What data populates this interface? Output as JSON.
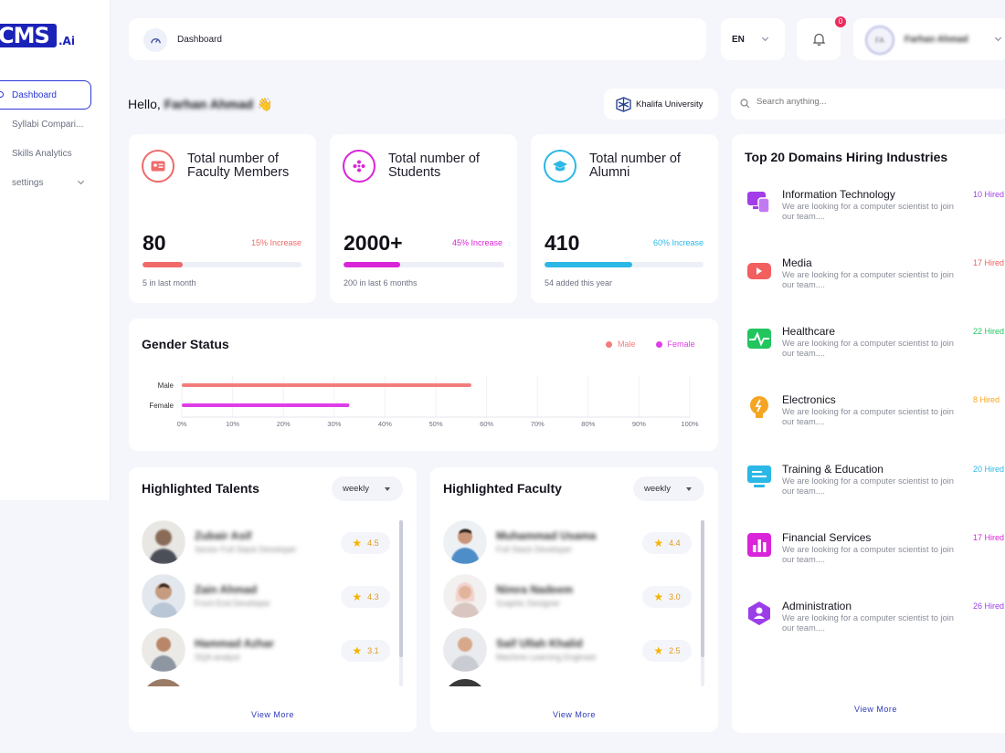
{
  "brand": {
    "logo_text": "CMS",
    "logo_suffix": ".Ai"
  },
  "sidebar": {
    "items": [
      {
        "label": "Dashboard"
      },
      {
        "label": "Syllabi Compari..."
      },
      {
        "label": "Skills Analytics"
      },
      {
        "label": "settings"
      }
    ]
  },
  "header": {
    "page": "Dashboard",
    "language": "EN",
    "notification_count": "0",
    "user_initials": "FA",
    "user_name": "Farhan Ahmad"
  },
  "greeting": {
    "hello": "Hello,",
    "name": "Farhan Ahmad",
    "emoji": "👋"
  },
  "university": "Khalifa University",
  "search": {
    "placeholder": "Search anything..."
  },
  "stats": [
    {
      "title": "Total number of Faculty Members",
      "value": "80",
      "change": "15% Increase",
      "progress": 0.25,
      "sub": "5 in last month",
      "color": "#f06a6a"
    },
    {
      "title": "Total number of Students",
      "value": "2000+",
      "change": "45% Increase",
      "progress": 0.35,
      "sub": "200 in last 6 months",
      "color": "#d924d9"
    },
    {
      "title": "Total number of Alumni",
      "value": "410",
      "change": "60% Increase",
      "progress": 0.55,
      "sub": "54 added this year",
      "color": "#2bb8e6"
    }
  ],
  "gender": {
    "title": "Gender Status",
    "legend": [
      {
        "label": "Male",
        "color": "#f47c7c"
      },
      {
        "label": "Female",
        "color": "#de3ee8"
      }
    ]
  },
  "chart_data": {
    "type": "bar",
    "orientation": "horizontal",
    "title": "Gender Status",
    "categories": [
      "Male",
      "Female"
    ],
    "values": [
      57,
      33
    ],
    "xlim": [
      0,
      100
    ],
    "xticks": [
      "0%",
      "10%",
      "20%",
      "30%",
      "40%",
      "50%",
      "60%",
      "70%",
      "80%",
      "90%",
      "100%"
    ],
    "legend": [
      "Male",
      "Female"
    ],
    "legend_position": "top-right",
    "colors": [
      "#f47c7c",
      "#de3ee8"
    ]
  },
  "talents": {
    "title": "Highlighted Talents",
    "filter": "weekly",
    "items": [
      {
        "name": "Zubair Asif",
        "role": "Senior Full Stack Developer",
        "rating": "4.5"
      },
      {
        "name": "Zain Ahmad",
        "role": "Front End Developer",
        "rating": "4.3"
      },
      {
        "name": "Hammad Azhar",
        "role": "SQA analyst",
        "rating": "3.1"
      }
    ],
    "view_more": "View More"
  },
  "faculty": {
    "title": "Highlighted Faculty",
    "filter": "weekly",
    "items": [
      {
        "name": "Muhammad Usama",
        "role": "Full Stack Developer",
        "rating": "4.4"
      },
      {
        "name": "Nimra Nadeem",
        "role": "Graphic Designer",
        "rating": "3.0"
      },
      {
        "name": "Saif Ullah Khalid",
        "role": "Machine Learning Engineer",
        "rating": "2.5"
      }
    ],
    "view_more": "View More"
  },
  "domains": {
    "title": "Top 20 Domains Hiring Industries",
    "items": [
      {
        "name": "Information Technology",
        "desc": "We are looking for a computer scientist to join our team....",
        "hired": "10 Hired",
        "color": "#a23ee8",
        "icon": "devices-icon"
      },
      {
        "name": "Media",
        "desc": "We are looking for a computer scientist to join our team....",
        "hired": "17 Hired",
        "color": "#f25f5f",
        "icon": "video-camera-icon"
      },
      {
        "name": "Healthcare",
        "desc": "We are looking for a computer scientist to join our team....",
        "hired": "22 Hired",
        "color": "#22c55e",
        "icon": "heartbeat-icon"
      },
      {
        "name": "Electronics",
        "desc": "We are looking for a computer scientist to join our team....",
        "hired": "8 Hired",
        "color": "#f5a524",
        "icon": "bulb-icon"
      },
      {
        "name": "Training & Education",
        "desc": "We are looking for a computer scientist to join our team....",
        "hired": "20 Hired",
        "color": "#2bb8e6",
        "icon": "presentation-icon"
      },
      {
        "name": "Financial Services",
        "desc": "We are looking for a computer scientist to join our team....",
        "hired": "17 Hired",
        "color": "#d924d9",
        "icon": "bar-chart-icon"
      },
      {
        "name": "Administration",
        "desc": "We are looking for a computer scientist to join our team....",
        "hired": "26 Hired",
        "color": "#9b3ee8",
        "icon": "user-hexagon-icon"
      }
    ],
    "view_more": "View More"
  }
}
